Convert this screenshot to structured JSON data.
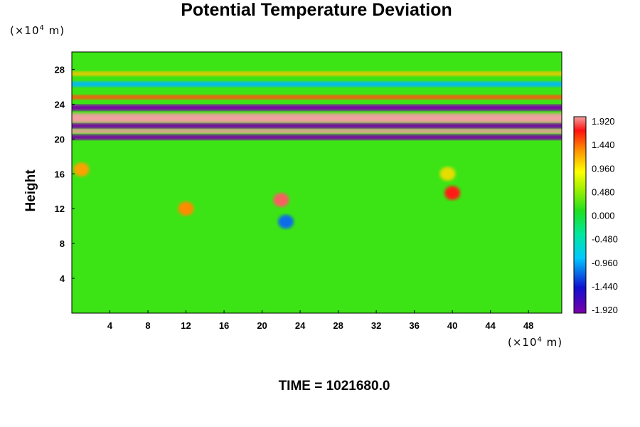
{
  "chart_data": {
    "type": "heatmap",
    "title": "Potential Temperature Deviation",
    "xlabel": "",
    "ylabel": "Height",
    "x_unit_prefix": "(×10",
    "x_unit_exp": "4",
    "x_unit_suffix": " m)",
    "y_unit_prefix": "(×10",
    "y_unit_exp": "4",
    "y_unit_suffix": " m)",
    "xlim": [
      0,
      51.5
    ],
    "ylim": [
      0,
      30
    ],
    "x_ticks": [
      4,
      8,
      12,
      16,
      20,
      24,
      28,
      32,
      36,
      40,
      44,
      48
    ],
    "y_ticks": [
      4,
      8,
      12,
      16,
      20,
      24,
      28
    ],
    "colorbar": {
      "ticks": [
        "1.920",
        "1.440",
        "0.960",
        "0.480",
        "0.000",
        "-0.480",
        "-0.960",
        "-1.440",
        "-1.920"
      ],
      "range": [
        -1.92,
        1.92
      ]
    },
    "features": [
      {
        "kind": "band",
        "y_center": 23.6,
        "thickness": 0.7,
        "value": -1.92
      },
      {
        "kind": "band",
        "y_center": 22.4,
        "thickness": 1.1,
        "value": 1.92
      },
      {
        "kind": "band",
        "y_center": 21.5,
        "thickness": 0.6,
        "value": -1.92
      },
      {
        "kind": "band",
        "y_center": 20.9,
        "thickness": 0.5,
        "value": 1.92
      },
      {
        "kind": "band",
        "y_center": 20.2,
        "thickness": 0.6,
        "value": -1.92
      },
      {
        "kind": "band",
        "y_center": 24.8,
        "thickness": 0.5,
        "value": 1.2
      },
      {
        "kind": "band",
        "y_center": 26.3,
        "thickness": 0.6,
        "value": -1.0
      },
      {
        "kind": "band",
        "y_center": 27.5,
        "thickness": 0.5,
        "value": 0.7
      },
      {
        "kind": "blob",
        "x": 22.0,
        "y": 13.0,
        "value": 1.7
      },
      {
        "kind": "blob",
        "x": 40.0,
        "y": 13.8,
        "value": 1.4
      },
      {
        "kind": "blob",
        "x": 39.5,
        "y": 16.0,
        "value": 0.6
      },
      {
        "kind": "blob",
        "x": 1.0,
        "y": 16.5,
        "value": 0.9
      },
      {
        "kind": "blob",
        "x": 12.0,
        "y": 12.0,
        "value": 1.0
      },
      {
        "kind": "blob",
        "x": 22.5,
        "y": 10.5,
        "value": -1.2
      }
    ],
    "background_value": 0.1
  },
  "footer": {
    "time_text": "TIME = 1021680.0"
  }
}
